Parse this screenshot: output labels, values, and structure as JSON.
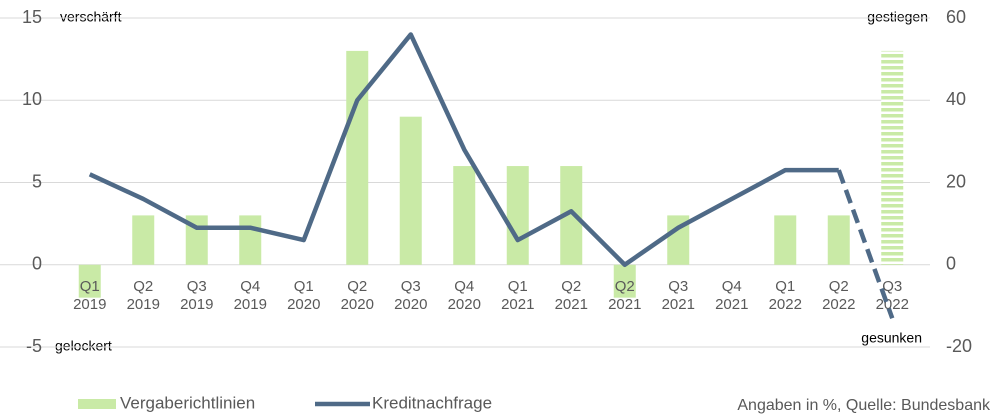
{
  "chart_data": {
    "type": "bar_line",
    "categories": [
      "Q1 2019",
      "Q2 2019",
      "Q3 2019",
      "Q4 2019",
      "Q1 2020",
      "Q2 2020",
      "Q3 2020",
      "Q4 2020",
      "Q1 2021",
      "Q2 2021",
      "Q2 2021",
      "Q3 2021",
      "Q4 2021",
      "Q1 2022",
      "Q2 2022",
      "Q3 2022"
    ],
    "series": [
      {
        "name": "Vergaberichtlinien",
        "type": "bar",
        "color": "#c9eaa6",
        "values": [
          -2,
          3,
          3,
          3,
          0,
          13,
          9,
          6,
          6,
          6,
          -2,
          3,
          0,
          3,
          3,
          13
        ],
        "hatched_last": true
      },
      {
        "name": "Kreditnachfrage",
        "type": "line",
        "axis": "y2",
        "color": "#4f6a87",
        "values": [
          22,
          16,
          9,
          9,
          6,
          40,
          56,
          28,
          6,
          13,
          0,
          9,
          16,
          23,
          23,
          -13
        ],
        "dashed_last_segment": true
      }
    ],
    "ylim": [
      -5,
      15
    ],
    "yticks": [
      -5,
      0,
      5,
      10,
      15
    ],
    "y2lim": [
      -20,
      60
    ],
    "y2ticks": [
      -20,
      0,
      20,
      40,
      60
    ],
    "grid": true,
    "annotations": {
      "top_left": "verschärft",
      "bottom_left": "gelockert",
      "top_right": "gestiegen",
      "bottom_right": "gesunken"
    },
    "source": "Angaben in %, Quelle: Bundesbank",
    "legend": "bottom"
  }
}
